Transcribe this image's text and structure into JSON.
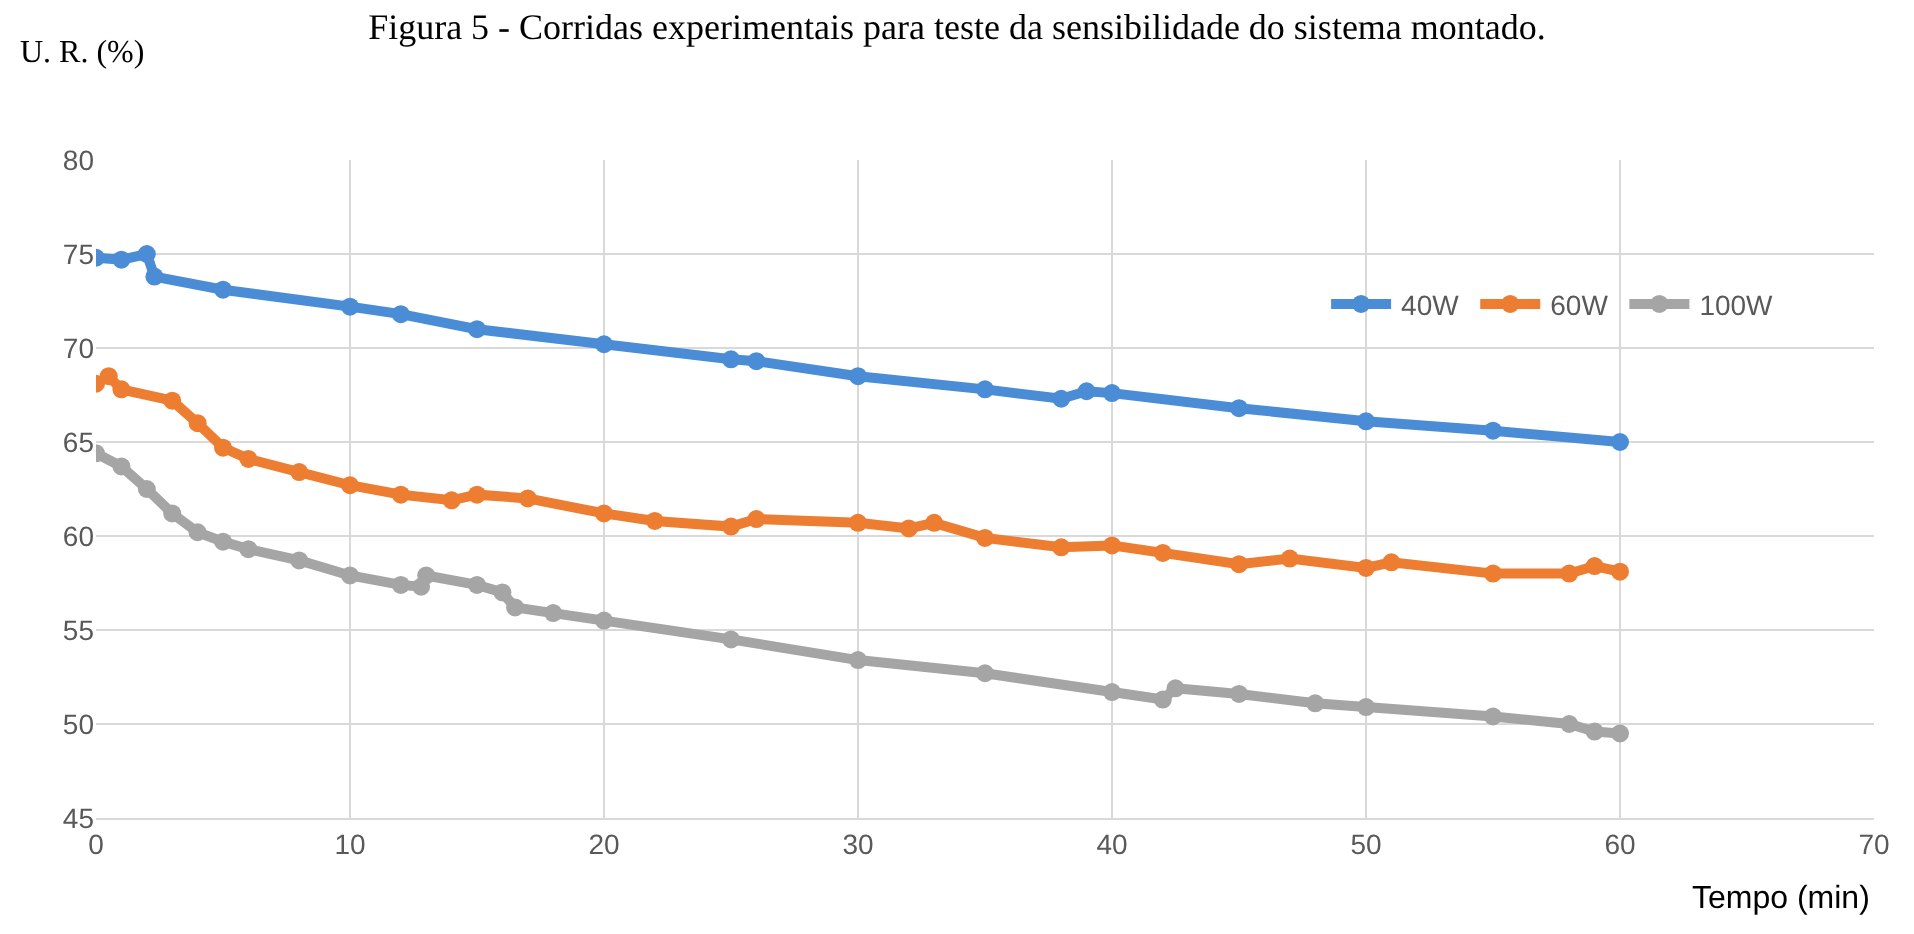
{
  "chart_data": {
    "type": "line",
    "title": "Figura 5 - Corridas experimentais para teste da sensibilidade do sistema montado.",
    "ylabel": "U. R. (%)",
    "xlabel": "Tempo (min)",
    "xlim": [
      0,
      70
    ],
    "xticks": [
      0,
      10,
      20,
      30,
      40,
      50,
      60,
      70
    ],
    "ylim": [
      45,
      80
    ],
    "yticks": [
      45,
      50,
      55,
      60,
      65,
      70,
      75,
      80
    ],
    "grid": true,
    "legend": "top right",
    "marker": "circle",
    "line_style": "solid",
    "series": [
      {
        "name": "40W",
        "color": "#4a8dd6",
        "x": [
          0,
          1,
          2,
          2.3,
          5,
          10,
          12,
          15,
          20,
          25,
          26,
          30,
          35,
          38,
          39,
          40,
          45,
          50,
          55,
          60
        ],
        "values": [
          74.8,
          74.7,
          75.0,
          73.8,
          73.1,
          72.2,
          71.8,
          71.0,
          70.2,
          69.4,
          69.3,
          68.5,
          67.8,
          67.3,
          67.7,
          67.6,
          66.8,
          66.1,
          65.6,
          65.0
        ]
      },
      {
        "name": "60W",
        "color": "#ed7d31",
        "x": [
          0,
          0.5,
          1,
          3,
          4,
          5,
          6,
          8,
          10,
          12,
          14,
          15,
          17,
          20,
          22,
          25,
          26,
          30,
          32,
          33,
          35,
          38,
          40,
          42,
          45,
          47,
          50,
          51,
          55,
          58,
          59,
          60
        ],
        "values": [
          68.1,
          68.5,
          67.8,
          67.2,
          66.0,
          64.7,
          64.1,
          63.4,
          62.7,
          62.2,
          61.9,
          62.2,
          62.0,
          61.2,
          60.8,
          60.5,
          60.9,
          60.7,
          60.4,
          60.7,
          59.9,
          59.4,
          59.5,
          59.1,
          58.5,
          58.8,
          58.3,
          58.6,
          58.0,
          58.0,
          58.4,
          58.1
        ]
      },
      {
        "name": "100W",
        "color": "#a5a5a5",
        "x": [
          0,
          1,
          2,
          3,
          4,
          5,
          6,
          8,
          10,
          12,
          12.8,
          13,
          15,
          16,
          16.5,
          18,
          20,
          25,
          30,
          35,
          40,
          42,
          42.5,
          45,
          48,
          50,
          55,
          58,
          59,
          60
        ],
        "values": [
          64.4,
          63.7,
          62.5,
          61.2,
          60.2,
          59.7,
          59.3,
          58.7,
          57.9,
          57.4,
          57.3,
          57.9,
          57.4,
          57.0,
          56.2,
          55.9,
          55.5,
          54.5,
          53.4,
          52.7,
          51.7,
          51.3,
          51.9,
          51.6,
          51.1,
          50.9,
          50.4,
          50.0,
          49.6,
          49.5
        ]
      }
    ]
  }
}
